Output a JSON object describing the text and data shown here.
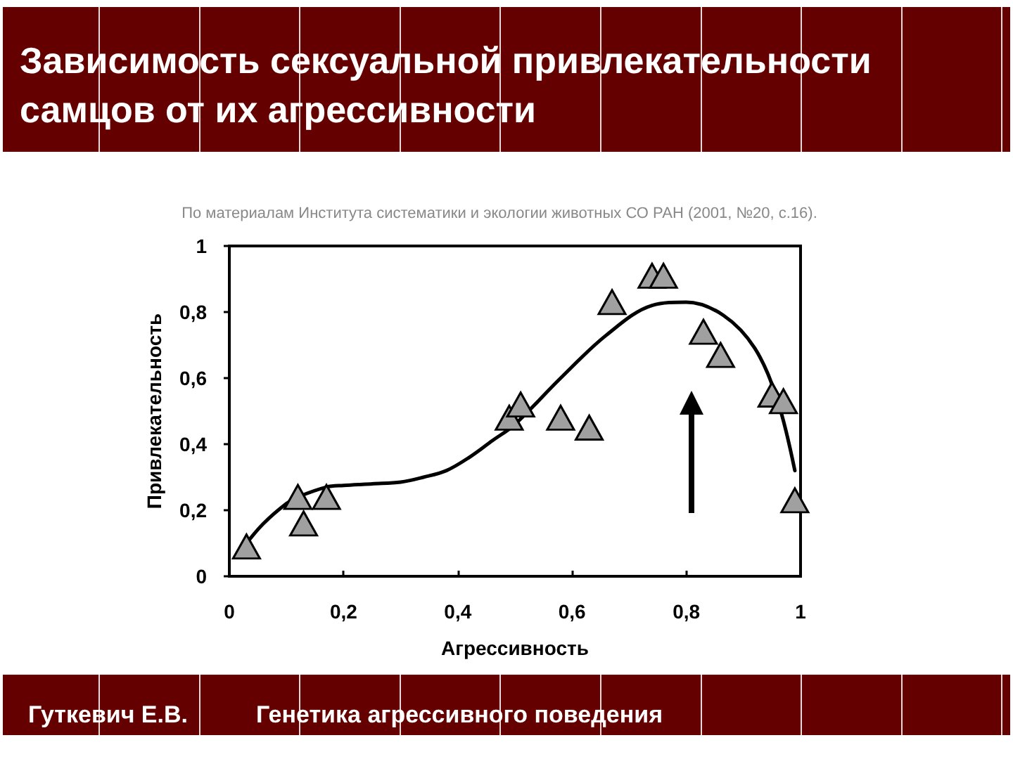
{
  "chart_data": {
    "type": "scatter",
    "title": "Зависимость сексуальной привлекательности самцов от их агрессивности",
    "xlabel": "Агрессивность",
    "ylabel": "Привлекательность",
    "annotations": [
      "По материалам Института систематики и экологии животных СО РАН (2001, №20, с.16).",
      "Гуткевич Е.В.",
      "Генетика агрессивного поведения"
    ],
    "xlim": [
      0,
      1
    ],
    "ylim": [
      0,
      1
    ],
    "xticks": [
      0,
      {
        "value": 0.2,
        "label": "0,2"
      },
      {
        "value": 0.4,
        "label": "0,4"
      },
      {
        "value": 0.6,
        "label": "0,6"
      },
      {
        "value": 0.8,
        "label": "0,8"
      },
      1
    ],
    "yticks": [
      0,
      {
        "value": 0.2,
        "label": "0,2"
      },
      {
        "value": 0.4,
        "label": "0,4"
      },
      {
        "value": 0.6,
        "label": "0,6"
      },
      {
        "value": 0.8,
        "label": "0,8"
      },
      1
    ],
    "marker": "triangle",
    "series": [
      {
        "type": "line",
        "color": "#000000",
        "marker": "none",
        "x": [
          0.03,
          0.06,
          0.1,
          0.12,
          0.17,
          0.2,
          0.25,
          0.3,
          0.34,
          0.38,
          0.42,
          0.46,
          0.5,
          0.58,
          0.66,
          0.74,
          0.8,
          0.865,
          0.92,
          0.96,
          0.99
        ],
        "values": [
          0.1,
          0.16,
          0.22,
          0.24,
          0.27,
          0.275,
          0.28,
          0.285,
          0.3,
          0.32,
          0.36,
          0.41,
          0.46,
          0.6,
          0.73,
          0.82,
          0.83,
          0.79,
          0.69,
          0.53,
          0.32
        ]
      },
      {
        "color": "#a0a0a0",
        "x": [
          0.03,
          0.12,
          0.13,
          0.17,
          0.49,
          0.51,
          0.58,
          0.63,
          0.67,
          0.74,
          0.76,
          0.83,
          0.86,
          0.95,
          0.97,
          0.99
        ],
        "values": [
          0.09,
          0.24,
          0.16,
          0.24,
          0.48,
          0.52,
          0.48,
          0.45,
          0.83,
          0.91,
          0.91,
          0.74,
          0.67,
          0.55,
          0.53,
          0.23
        ]
      }
    ]
  }
}
